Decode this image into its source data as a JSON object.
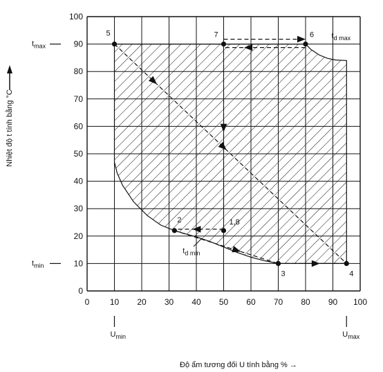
{
  "chart_data": {
    "type": "area",
    "xlabel": "Độ ẩm tương đối U tính bằng % →",
    "ylabel": "Nhiệt độ t tính bằng °C",
    "xlim": [
      0,
      100
    ],
    "ylim": [
      0,
      100
    ],
    "grid": true,
    "x_ticks": [
      "0",
      "10",
      "20",
      "30",
      "40",
      "50",
      "60",
      "70",
      "80",
      "90",
      "100"
    ],
    "y_ticks": [
      "0",
      "10",
      "20",
      "30",
      "40",
      "50",
      "60",
      "70",
      "80",
      "90",
      "100"
    ],
    "y_markers": {
      "tmax": {
        "label": "t",
        "sub": "max",
        "y": 90
      },
      "tmin": {
        "label": "t",
        "sub": "min",
        "y": 10
      }
    },
    "x_markers": {
      "umin": {
        "label": "U",
        "sub": "min",
        "x": 10
      },
      "umax": {
        "label": "U",
        "sub": "max",
        "x": 95
      }
    },
    "curve_labels": {
      "td_max": {
        "label": "t",
        "sub": "d max"
      },
      "td_min": {
        "label": "t",
        "sub": "d min"
      }
    },
    "points": [
      {
        "label": "5",
        "x": 10,
        "y": 90
      },
      {
        "label": "7",
        "x": 50,
        "y": 90
      },
      {
        "label": "6",
        "x": 80,
        "y": 90
      },
      {
        "label": "2",
        "x": 32,
        "y": 22
      },
      {
        "label": "1,8",
        "x": 50,
        "y": 22
      },
      {
        "label": "3",
        "x": 70,
        "y": 10
      },
      {
        "label": "4",
        "x": 95,
        "y": 10
      }
    ],
    "region_outline": [
      [
        10,
        90
      ],
      [
        80,
        90
      ],
      [
        82,
        88
      ],
      [
        85,
        86
      ],
      [
        88,
        84.8
      ],
      [
        91,
        84.2
      ],
      [
        95,
        84
      ],
      [
        95,
        10
      ],
      [
        70,
        10
      ],
      [
        65,
        11
      ],
      [
        60,
        12.3
      ],
      [
        55,
        14
      ],
      [
        50,
        16
      ],
      [
        45,
        18
      ],
      [
        40,
        19.7
      ],
      [
        36,
        20.8
      ],
      [
        32,
        22
      ],
      [
        27,
        24
      ],
      [
        22,
        27.5
      ],
      [
        17,
        32.5
      ],
      [
        13,
        38.5
      ],
      [
        11,
        43
      ],
      [
        10,
        47
      ],
      [
        10,
        90
      ]
    ],
    "cycle_paths": [
      {
        "from": "5",
        "to": "4",
        "style": "dashed",
        "arrows_at": [
          0.17,
          0.47
        ]
      },
      {
        "from": "7",
        "to": "1,8",
        "style": "dashed",
        "arrows_at": [
          0.45
        ]
      },
      {
        "from": "7",
        "to": "6",
        "style": "dashed",
        "arrows_at": [
          1.0
        ]
      },
      {
        "from": "6",
        "to": "7",
        "style": "dashed",
        "arrows_at": [
          0.7
        ]
      },
      {
        "from": "1,8",
        "to": "2",
        "style": "dashed",
        "arrows_at": [
          0.55
        ]
      },
      {
        "from": "2",
        "to": "3",
        "style": "dashed",
        "arrows_at": [
          0.6
        ]
      },
      {
        "from": "3",
        "to": "4",
        "style": "dashed",
        "arrows_at": [
          0.55
        ]
      }
    ]
  }
}
